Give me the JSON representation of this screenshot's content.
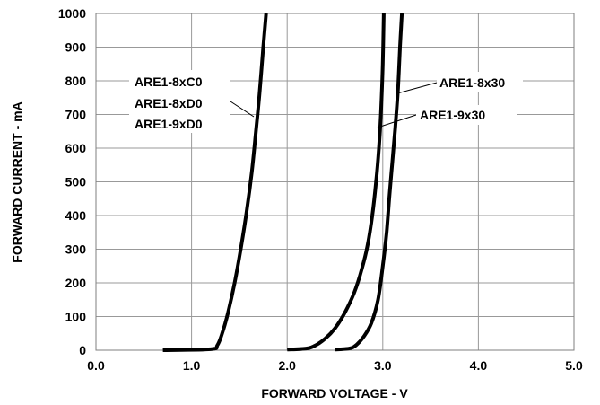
{
  "chart_data": {
    "type": "line",
    "title": "",
    "xlabel": "FORWARD VOLTAGE - V",
    "ylabel": "FORWARD CURRENT - mA",
    "xlim": [
      0,
      5
    ],
    "ylim": [
      0,
      1000
    ],
    "x_ticks": [
      "0.0",
      "1.0",
      "2.0",
      "3.0",
      "4.0",
      "5.0"
    ],
    "y_ticks": [
      "0",
      "100",
      "200",
      "300",
      "400",
      "500",
      "600",
      "700",
      "800",
      "900",
      "1000"
    ],
    "grid": true,
    "line_color": "#000000",
    "grid_color": "#999999",
    "series": [
      {
        "name": "ARE1-8xC0 / ARE1-8xD0 / ARE1-9xD0",
        "points": [
          [
            0.7,
            0
          ],
          [
            1.2,
            3
          ],
          [
            1.27,
            15
          ],
          [
            1.32,
            50
          ],
          [
            1.38,
            110
          ],
          [
            1.45,
            200
          ],
          [
            1.52,
            310
          ],
          [
            1.58,
            420
          ],
          [
            1.63,
            530
          ],
          [
            1.67,
            640
          ],
          [
            1.71,
            760
          ],
          [
            1.75,
            900
          ],
          [
            1.78,
            1000
          ]
        ]
      },
      {
        "name": "ARE1-9x30",
        "points": [
          [
            2.0,
            2
          ],
          [
            2.2,
            5
          ],
          [
            2.3,
            15
          ],
          [
            2.4,
            35
          ],
          [
            2.5,
            65
          ],
          [
            2.6,
            110
          ],
          [
            2.7,
            170
          ],
          [
            2.78,
            240
          ],
          [
            2.84,
            310
          ],
          [
            2.89,
            400
          ],
          [
            2.93,
            500
          ],
          [
            2.96,
            600
          ],
          [
            2.98,
            700
          ],
          [
            3.0,
            850
          ],
          [
            3.01,
            1000
          ]
        ]
      },
      {
        "name": "ARE1-8x30",
        "points": [
          [
            2.5,
            2
          ],
          [
            2.65,
            5
          ],
          [
            2.72,
            15
          ],
          [
            2.8,
            40
          ],
          [
            2.88,
            80
          ],
          [
            2.95,
            150
          ],
          [
            3.0,
            250
          ],
          [
            3.04,
            350
          ],
          [
            3.07,
            460
          ],
          [
            3.1,
            560
          ],
          [
            3.13,
            660
          ],
          [
            3.16,
            780
          ],
          [
            3.18,
            900
          ],
          [
            3.2,
            1000
          ]
        ]
      }
    ],
    "annotations": [
      "ARE1-8xC0",
      "ARE1-8xD0",
      "ARE1-9xD0",
      "ARE1-8x30",
      "ARE1-9x30"
    ]
  }
}
